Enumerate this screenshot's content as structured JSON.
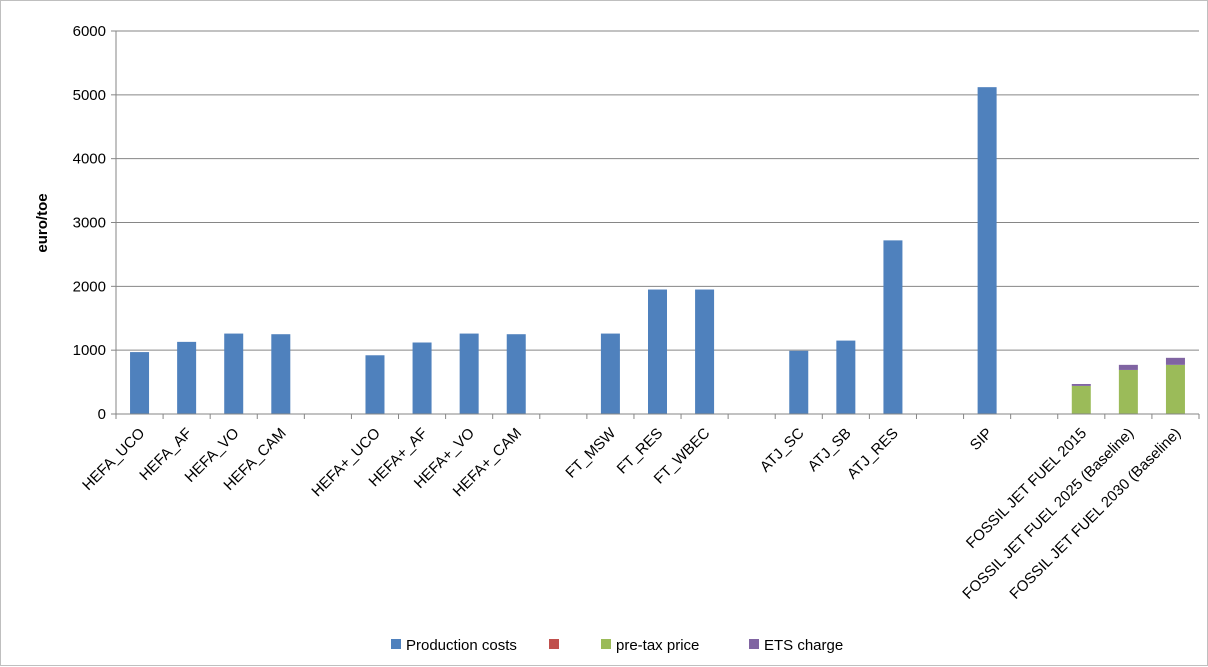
{
  "chart_data": {
    "type": "bar",
    "stacked": true,
    "title": "",
    "xlabel": "",
    "ylabel": "euro/toe",
    "ylim": [
      0,
      6000
    ],
    "yticks": [
      0,
      1000,
      2000,
      3000,
      4000,
      5000,
      6000
    ],
    "grid": true,
    "legend_position": "bottom",
    "categories": [
      "HEFA_UCO",
      "HEFA_AF",
      "HEFA_VO",
      "HEFA_CAM",
      "",
      "HEFA+_UCO",
      "HEFA+_AF",
      "HEFA+_VO",
      "HEFA+_CAM",
      "",
      "FT_MSW",
      "FT_RES",
      "FT_WBEC",
      "",
      "ATJ_SC",
      "ATJ_SB",
      "ATJ_RES",
      "",
      "SIP",
      "",
      "FOSSIL JET FUEL 2015",
      "FOSSIL JET FUEL 2025 (Baseline)",
      "FOSSIL JET FUEL 2030 (Baseline)"
    ],
    "series": [
      {
        "name": "Production costs",
        "color": "#4f81bd",
        "values": [
          970,
          1130,
          1260,
          1250,
          0,
          920,
          1120,
          1260,
          1250,
          0,
          1260,
          1950,
          1950,
          0,
          990,
          1150,
          2720,
          0,
          5120,
          0,
          0,
          0,
          0
        ]
      },
      {
        "name": "",
        "color": "#c0504d",
        "values": [
          0,
          0,
          0,
          0,
          0,
          0,
          0,
          0,
          0,
          0,
          0,
          0,
          0,
          0,
          0,
          0,
          0,
          0,
          0,
          0,
          0,
          0,
          0
        ]
      },
      {
        "name": "pre-tax price",
        "color": "#9bbb59",
        "values": [
          0,
          0,
          0,
          0,
          0,
          0,
          0,
          0,
          0,
          0,
          0,
          0,
          0,
          0,
          0,
          0,
          0,
          0,
          0,
          0,
          440,
          690,
          770
        ]
      },
      {
        "name": "ETS charge",
        "color": "#8064a2",
        "values": [
          0,
          0,
          0,
          0,
          0,
          0,
          0,
          0,
          0,
          0,
          0,
          0,
          0,
          0,
          0,
          0,
          0,
          0,
          0,
          0,
          30,
          80,
          110
        ]
      }
    ]
  }
}
